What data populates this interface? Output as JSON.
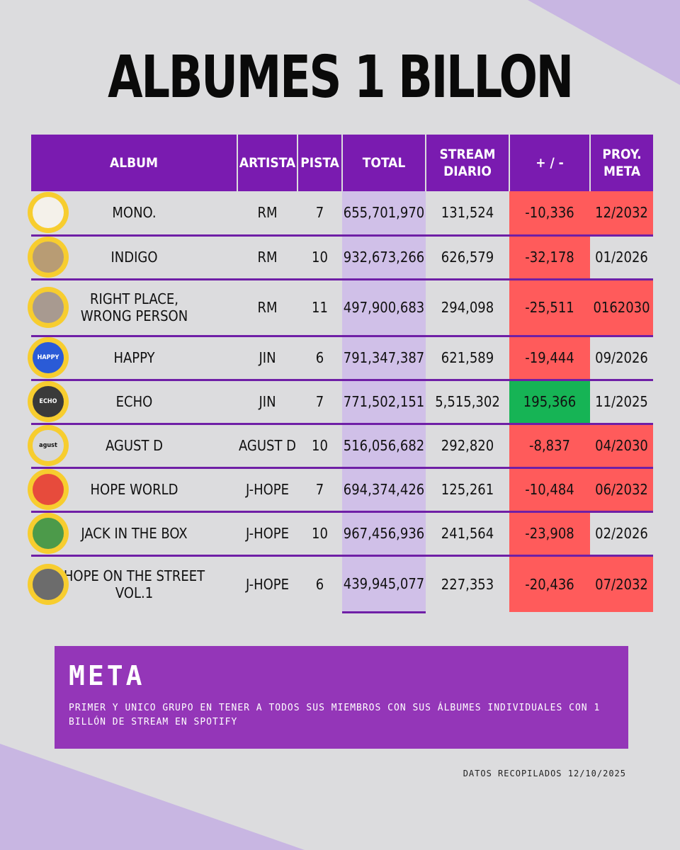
{
  "title": "ALBUMES 1 BILLON",
  "table": {
    "headers": {
      "album": "ALBUM",
      "artist": "ARTISTA",
      "pista": "PISTA",
      "total": "TOTAL",
      "daily_1": "STREAM",
      "daily_2": "DIARIO",
      "diff": "+ / -",
      "proy_1": "PROY.",
      "proy_2": "META"
    },
    "rows": [
      {
        "album": "MONO.",
        "artist": "RM",
        "pista": "7",
        "total": "655,701,970",
        "daily": "131,524",
        "diff": "-10,336",
        "proy": "12/2032",
        "diff_status": "negative",
        "proy_status": "late",
        "cover_icon": "mono-cover-icon",
        "cover_label": "",
        "cover_color": "#f4f1ea"
      },
      {
        "album": "INDIGO",
        "artist": "RM",
        "pista": "10",
        "total": "932,673,266",
        "daily": "626,579",
        "diff": "-32,178",
        "proy": "01/2026",
        "diff_status": "negative",
        "proy_status": "ok",
        "cover_icon": "indigo-cover-icon",
        "cover_label": "",
        "cover_color": "#b89c74"
      },
      {
        "album_1": "RIGHT PLACE,",
        "album_2": "WRONG PERSON",
        "artist": "RM",
        "pista": "11",
        "total": "497,900,683",
        "daily": "294,098",
        "diff": "-25,511",
        "proy": "0162030",
        "diff_status": "negative",
        "proy_status": "late",
        "cover_icon": "right-place-cover-icon",
        "cover_label": "",
        "cover_color": "#a89a90"
      },
      {
        "album": "HAPPY",
        "artist": "JIN",
        "pista": "6",
        "total": "791,347,387",
        "daily": "621,589",
        "diff": "-19,444",
        "proy": "09/2026",
        "diff_status": "negative",
        "proy_status": "ok",
        "cover_icon": "happy-cover-icon",
        "cover_label": "HAPPY",
        "cover_color": "#2a5bd7"
      },
      {
        "album": "ECHO",
        "artist": "JIN",
        "pista": "7",
        "total": "771,502,151",
        "daily": "5,515,302",
        "diff": "195,366",
        "proy": "11/2025",
        "diff_status": "positive",
        "proy_status": "ok",
        "cover_icon": "echo-cover-icon",
        "cover_label": "ECHO",
        "cover_color": "#3a3a3a"
      },
      {
        "album": "AGUST D",
        "artist": "AGUST D",
        "pista": "10",
        "total": "516,056,682",
        "daily": "292,820",
        "diff": "-8,837",
        "proy": "04/2030",
        "diff_status": "negative",
        "proy_status": "late",
        "cover_icon": "agust-d-cover-icon",
        "cover_label": "agust",
        "cover_color": "#d8d8d8"
      },
      {
        "album": "HOPE WORLD",
        "artist": "J-HOPE",
        "pista": "7",
        "total": "694,374,426",
        "daily": "125,261",
        "diff": "-10,484",
        "proy": "06/2032",
        "diff_status": "negative",
        "proy_status": "late",
        "cover_icon": "hope-world-cover-icon",
        "cover_label": "",
        "cover_color": "#e74b3c"
      },
      {
        "album": "JACK IN THE BOX",
        "artist": "J-HOPE",
        "pista": "10",
        "total": "967,456,936",
        "daily": "241,564",
        "diff": "-23,908",
        "proy": "02/2026",
        "diff_status": "negative",
        "proy_status": "ok",
        "cover_icon": "jack-in-the-box-cover-icon",
        "cover_label": "",
        "cover_color": "#4c9a4a"
      },
      {
        "album_1": "HOPE ON THE STREET",
        "album_2": "VOL.1",
        "artist": "J-HOPE",
        "pista": "6",
        "total": "439,945,077",
        "daily": "227,353",
        "diff": "-20,436",
        "proy": "07/2032",
        "diff_status": "negative",
        "proy_status": "late",
        "cover_icon": "hope-on-the-street-cover-icon",
        "cover_label": "",
        "cover_color": "#6c6c6c"
      }
    ]
  },
  "meta": {
    "heading": "META",
    "text": "PRIMER Y UNICO GRUPO EN TENER A TODOS SUS MIEMBROS CON SUS ÁLBUMES INDIVIDUALES CON 1 BILLÓN DE STREAM EN SPOTIFY"
  },
  "footer": "DATOS RECOPILADOS 12/10/2025",
  "colors": {
    "background": "#dcdcde",
    "accent_purple": "#7a1bb0",
    "meta_purple": "#9436b8",
    "total_column": "#d0c0e8",
    "negative": "#ff5b5b",
    "positive": "#16b455",
    "cover_ring": "#f7cd2f"
  }
}
